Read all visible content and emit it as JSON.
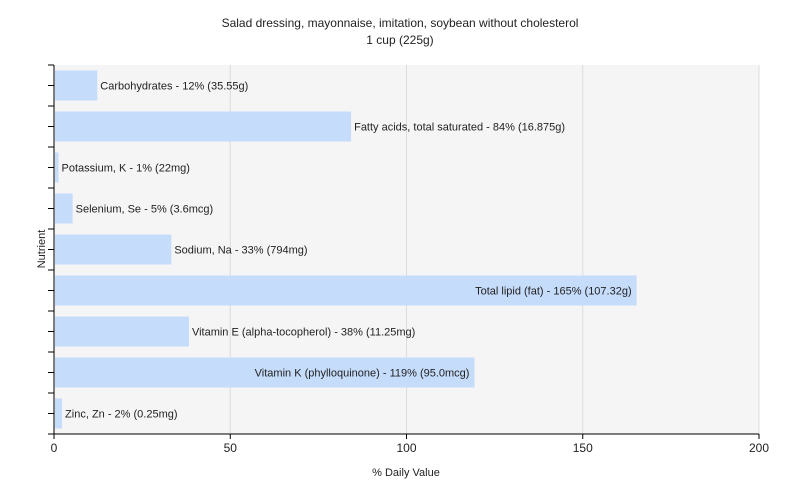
{
  "chart_data": {
    "type": "bar",
    "orientation": "horizontal",
    "title": "Salad dressing, mayonnaise, imitation, soybean without cholesterol",
    "subtitle": "1 cup (225g)",
    "xlabel": "% Daily Value",
    "ylabel": "Nutrient",
    "xlim": [
      0,
      200
    ],
    "xticks": [
      0,
      50,
      100,
      150,
      200
    ],
    "grid": true,
    "bar_color": "#c6dcfb",
    "categories": [
      "Carbohydrates",
      "Fatty acids, total saturated",
      "Potassium, K",
      "Selenium, Se",
      "Sodium, Na",
      "Total lipid (fat)",
      "Vitamin E (alpha-tocopherol)",
      "Vitamin K (phylloquinone)",
      "Zinc, Zn"
    ],
    "values": [
      12,
      84,
      1,
      5,
      33,
      165,
      38,
      119,
      2
    ],
    "labels": [
      "Carbohydrates - 12% (35.55g)",
      "Fatty acids, total saturated - 84% (16.875g)",
      "Potassium, K - 1% (22mg)",
      "Selenium, Se - 5% (3.6mcg)",
      "Sodium, Na - 33% (794mg)",
      "Total lipid (fat) - 165% (107.32g)",
      "Vitamin E (alpha-tocopherol) - 38% (11.25mg)",
      "Vitamin K (phylloquinone) - 119% (95.0mcg)",
      "Zinc, Zn - 2% (0.25mg)"
    ]
  }
}
